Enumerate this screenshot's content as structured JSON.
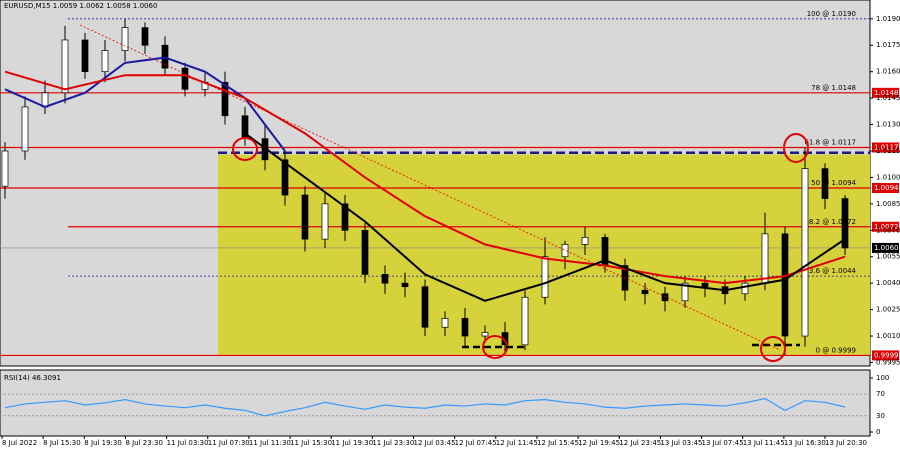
{
  "chart_data": {
    "type": "candlestick",
    "title": "EURUSD,M15  1.0059 1.0062 1.0058 1.0060",
    "categories": [
      "8 Jul 2022",
      "8 Jul 15:30",
      "8 Jul 19:30",
      "8 Jul 23:30",
      "11 Jul 03:30",
      "11 Jul 07:30",
      "11 Jul 11:30",
      "11 Jul 15:30",
      "11 Jul 19:30",
      "11 Jul 23:30",
      "12 Jul 03:45",
      "12 Jul 07:45",
      "12 Jul 11:45",
      "12 Jul 15:45",
      "12 Jul 19:45",
      "12 Jul 23:45",
      "13 Jul 03:45",
      "13 Jul 07:45",
      "13 Jul 11:45",
      "13 Jul 16:30",
      "13 Jul 20:30"
    ],
    "candles": {
      "open": [
        1.0095,
        1.0115,
        1.014,
        1.0148,
        1.0178,
        1.016,
        1.0172,
        1.0185,
        1.0175,
        1.0162,
        1.015,
        1.0154,
        1.0135,
        1.0122,
        1.011,
        1.009,
        1.0065,
        1.0085,
        1.007,
        1.0045,
        1.004,
        1.0038,
        1.0015,
        1.002,
        1.001,
        1.0012,
        1.0005,
        1.0032,
        1.0055,
        1.0062,
        1.0066,
        1.005,
        1.0036,
        1.0034,
        1.003,
        1.004,
        1.0038,
        1.0034,
        1.004,
        1.0068,
        1.001,
        1.0105,
        1.0088
      ],
      "high": [
        1.012,
        1.0146,
        1.0155,
        1.0186,
        1.0182,
        1.0178,
        1.019,
        1.0188,
        1.018,
        1.0165,
        1.016,
        1.016,
        1.014,
        1.013,
        1.0115,
        1.0095,
        1.0092,
        1.009,
        1.0074,
        1.005,
        1.0046,
        1.0042,
        1.0024,
        1.0026,
        1.0016,
        1.0018,
        1.0036,
        1.0066,
        1.0064,
        1.0072,
        1.0068,
        1.0054,
        1.004,
        1.0038,
        1.0044,
        1.0044,
        1.0042,
        1.0044,
        1.008,
        1.0072,
        1.0117,
        1.0108,
        1.009
      ],
      "low": [
        1.0088,
        1.011,
        1.0136,
        1.0142,
        1.0156,
        1.0154,
        1.0166,
        1.017,
        1.0158,
        1.0146,
        1.0146,
        1.013,
        1.0118,
        1.0104,
        1.0084,
        1.0058,
        1.006,
        1.0064,
        1.004,
        1.0034,
        1.0032,
        1.001,
        1.001,
        1.0004,
        1.0006,
        1.0,
        1.0002,
        1.0028,
        1.0048,
        1.0056,
        1.0046,
        1.003,
        1.0028,
        1.0024,
        1.0026,
        1.0032,
        1.0028,
        1.003,
        1.0036,
        0.9999,
        1.0004,
        1.0082,
        1.0056
      ],
      "close": [
        1.0115,
        1.014,
        1.0148,
        1.0178,
        1.016,
        1.0172,
        1.0185,
        1.0175,
        1.0162,
        1.015,
        1.0154,
        1.0135,
        1.0122,
        1.011,
        1.009,
        1.0065,
        1.0085,
        1.007,
        1.0045,
        1.004,
        1.0038,
        1.0015,
        1.002,
        1.001,
        1.0012,
        1.0005,
        1.0032,
        1.0055,
        1.0062,
        1.0066,
        1.005,
        1.0036,
        1.0034,
        1.003,
        1.004,
        1.0038,
        1.0034,
        1.004,
        1.0068,
        1.001,
        1.0105,
        1.0088,
        1.006
      ]
    },
    "moving_averages": [
      {
        "color": "#1a1aa0",
        "x": [
          0,
          2,
          4,
          6,
          8,
          10,
          12,
          14
        ],
        "values": [
          1.015,
          1.014,
          1.0148,
          1.0165,
          1.0168,
          1.016,
          1.0145,
          1.0115
        ]
      },
      {
        "color": "#e00000",
        "x": [
          0,
          3,
          6,
          9,
          12,
          15,
          18,
          21,
          24,
          27,
          30,
          33,
          36,
          39,
          42
        ],
        "values": [
          1.016,
          1.015,
          1.0158,
          1.0158,
          1.0145,
          1.0125,
          1.01,
          1.0078,
          1.0062,
          1.0054,
          1.005,
          1.0044,
          1.004,
          1.0044,
          1.0055
        ]
      },
      {
        "color": "#000000",
        "x": [
          12,
          15,
          18,
          21,
          24,
          27,
          30,
          33,
          36,
          39,
          42
        ],
        "values": [
          1.0125,
          1.01,
          1.0075,
          1.0045,
          1.003,
          1.004,
          1.0053,
          1.004,
          1.0036,
          1.0042,
          1.0065
        ]
      }
    ],
    "levels": [
      {
        "value": 1.019,
        "label": "100 @ 1.0190",
        "style": "dotted",
        "color": "#1a1aa0"
      },
      {
        "value": 1.0148,
        "label": "78 @ 1.0148",
        "style": "solid",
        "color": "#e00000",
        "tag": true
      },
      {
        "value": 1.0117,
        "label": "61.8 @ 1.0117",
        "style": "solid",
        "color": "#e00000",
        "tag": true
      },
      {
        "value": 1.0094,
        "label": "50 @ 1.0094",
        "style": "solid",
        "color": "#e00000",
        "tag": true
      },
      {
        "value": 1.0072,
        "label": "38.2 @ 1.0072",
        "style": "solid",
        "color": "#e00000",
        "tag": true
      },
      {
        "value": 1.0044,
        "label": "23.6 @ 1.0044",
        "style": "dotted",
        "color": "#1a1aa0"
      },
      {
        "value": 0.9999,
        "label": "0 @ 0.9999",
        "style": "solid",
        "color": "#e00000",
        "tag": true
      }
    ],
    "zone": [
      0.9999,
      1.0113
    ],
    "dashed_level": 1.0114,
    "current_price": {
      "value": 1.006,
      "label": "1.0060"
    },
    "ylim": [
      0.9993,
      1.0195
    ],
    "yticks": [
      {
        "value": 1.019,
        "label": "1.0190"
      },
      {
        "value": 1.0175,
        "label": "1.0175"
      },
      {
        "value": 1.016,
        "label": "1.0160"
      },
      {
        "value": 1.0145,
        "label": "1.0145"
      },
      {
        "value": 1.013,
        "label": "1.0130"
      },
      {
        "value": 1.0115,
        "label": "1.0115"
      },
      {
        "value": 1.01,
        "label": "1.0100"
      },
      {
        "value": 1.0085,
        "label": "1.0085"
      },
      {
        "value": 1.007,
        "label": "1.0070"
      },
      {
        "value": 1.0055,
        "label": "1.0055"
      },
      {
        "value": 1.004,
        "label": "1.0040"
      },
      {
        "value": 1.0025,
        "label": "1.0025"
      },
      {
        "value": 1.001,
        "label": "1.0010"
      },
      {
        "value": 0.9995,
        "label": "0.9995"
      }
    ],
    "rsi": {
      "title": "RSI(14) 46.3091",
      "color": "#3399ff",
      "values": [
        45,
        52,
        55,
        58,
        50,
        54,
        60,
        52,
        48,
        45,
        50,
        44,
        40,
        30,
        38,
        45,
        55,
        48,
        42,
        50,
        46,
        44,
        50,
        48,
        52,
        50,
        58,
        60,
        55,
        52,
        46,
        44,
        48,
        50,
        52,
        50,
        48,
        54,
        62,
        40,
        58,
        55,
        46.3091
      ],
      "ylim": [
        0,
        100
      ],
      "yticks": [
        0,
        30,
        70,
        100
      ]
    }
  }
}
